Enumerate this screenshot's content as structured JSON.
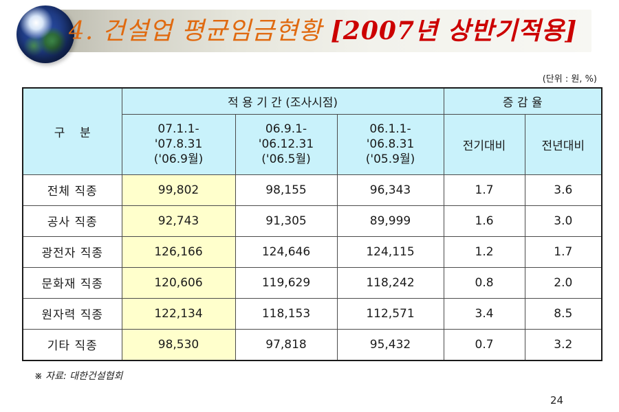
{
  "slide": {
    "title_main": "4. 건설업 평균임금현황 ",
    "title_accent": "[2007년 상반기적용]",
    "unit_note": "(단위 : 원, %)",
    "source": "※ 자료: 대한건설협회",
    "page_number": "24"
  },
  "table": {
    "header": {
      "category": "구    분",
      "period_group": "적 용 기 간 (조사시점)",
      "rate_group": "증 감 율",
      "periods": [
        {
          "range_start": "07.1.1-",
          "range_end": "'07.8.31",
          "survey": "('06.9월)"
        },
        {
          "range_start": "06.9.1-",
          "range_end": "'06.12.31",
          "survey": "('06.5월)"
        },
        {
          "range_start": "06.1.1-",
          "range_end": "'06.8.31",
          "survey": "('05.9월)"
        }
      ],
      "rates": [
        "전기대비",
        "전년대비"
      ]
    },
    "rows": [
      {
        "label": "전체 직종",
        "v1": "99,802",
        "v2": "98,155",
        "v3": "96,343",
        "r1": "1.7",
        "r2": "3.6"
      },
      {
        "label": "공사 직종",
        "v1": "92,743",
        "v2": "91,305",
        "v3": "89,999",
        "r1": "1.6",
        "r2": "3.0"
      },
      {
        "label": "광전자 직종",
        "v1": "126,166",
        "v2": "124,646",
        "v3": "124,115",
        "r1": "1.2",
        "r2": "1.7"
      },
      {
        "label": "문화재 직종",
        "v1": "120,606",
        "v2": "119,629",
        "v3": "118,242",
        "r1": "0.8",
        "r2": "2.0"
      },
      {
        "label": "원자력 직종",
        "v1": "122,134",
        "v2": "118,153",
        "v3": "112,571",
        "r1": "3.4",
        "r2": "8.5"
      },
      {
        "label": "기타 직종",
        "v1": "98,530",
        "v2": "97,818",
        "v3": "95,432",
        "r1": "0.7",
        "r2": "3.2"
      }
    ]
  },
  "colors": {
    "title": "#e06a10",
    "title_accent": "#cc0000",
    "header_fill": "#c9f2fb",
    "highlight_fill": "#ffffcc"
  },
  "icons": {
    "logo": "globe-icon"
  }
}
